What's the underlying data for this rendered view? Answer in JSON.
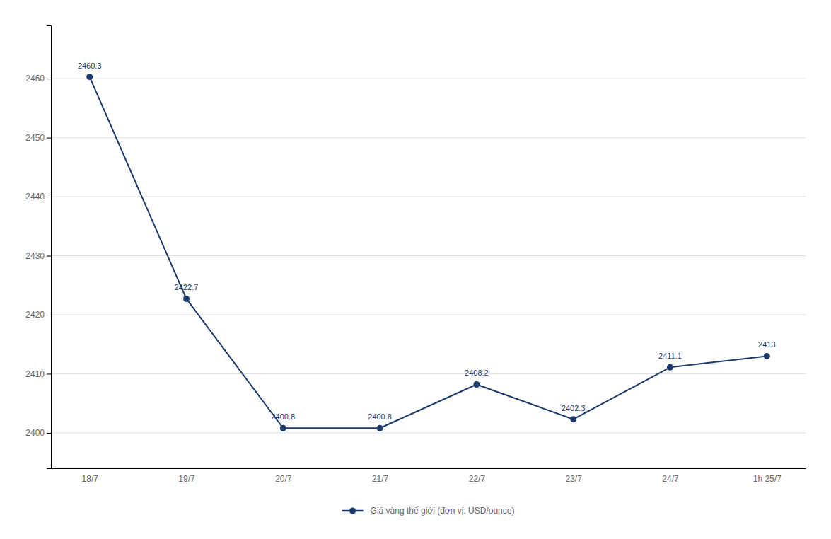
{
  "chart_data": {
    "type": "line",
    "categories": [
      "18/7",
      "19/7",
      "20/7",
      "21/7",
      "22/7",
      "23/7",
      "24/7",
      "1h 25/7"
    ],
    "series": [
      {
        "name": "Giá vàng thế giới (đơn vị: USD/ounce)",
        "color": "#1b3a6b",
        "marker": "circle",
        "values": [
          2460.3,
          2422.7,
          2400.8,
          2400.8,
          2408.2,
          2402.3,
          2411.1,
          2413
        ]
      }
    ],
    "ylim": [
      2394,
      2469
    ],
    "yticks": [
      2400,
      2410,
      2420,
      2430,
      2440,
      2450,
      2460
    ],
    "grid": true,
    "legend": "bottom",
    "data_labels": true
  }
}
